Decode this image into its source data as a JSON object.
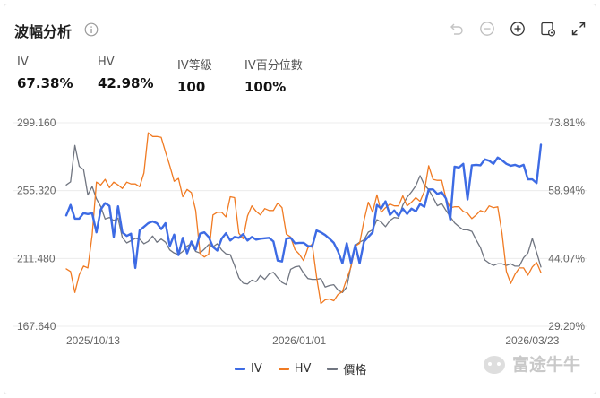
{
  "panel": {
    "title": "波幅分析"
  },
  "stats": [
    {
      "label": "IV",
      "value": "67.38%"
    },
    {
      "label": "HV",
      "value": "42.98%"
    },
    {
      "label": "IV等級",
      "value": "100"
    },
    {
      "label": "IV百分位數",
      "value": "100%"
    }
  ],
  "toolbar": [
    "undo-icon",
    "zoom-out-icon",
    "zoom-in-icon",
    "settings-icon",
    "fullscreen-icon"
  ],
  "watermark": {
    "text": "富途牛牛"
  },
  "colors": {
    "iv": "#3d6be4",
    "hv": "#f07a22",
    "price": "#707580",
    "grid": "#ececec",
    "axis_text": "#666666"
  },
  "chart_data": {
    "type": "line",
    "left_axis": {
      "ticks": [
        "299.160",
        "255.320",
        "211.480",
        "167.640"
      ],
      "range": [
        167.64,
        299.16
      ]
    },
    "right_axis": {
      "ticks": [
        "73.81%",
        "58.94%",
        "44.07%",
        "29.20%"
      ],
      "range": [
        29.2,
        73.81
      ]
    },
    "x_ticks": [
      {
        "label": "2025/10/13",
        "index": 0
      },
      {
        "label": "2026/01/01",
        "index": 54
      },
      {
        "label": "2026/03/23",
        "index": 108
      }
    ],
    "grid": true,
    "legend_position": "bottom-center",
    "series": [
      {
        "name": "IV",
        "key": "iv",
        "axis": "right",
        "values": [
          53.5,
          55.8,
          52.8,
          52.8,
          54.0,
          53.8,
          54.0,
          49.8,
          54.8,
          56.2,
          55.6,
          48.8,
          55.5,
          49.8,
          49.0,
          49.5,
          42.0,
          50.2,
          51.0,
          51.8,
          52.2,
          51.8,
          50.5,
          51.8,
          46.8,
          49.3,
          44.8,
          48.6,
          45.2,
          47.8,
          46.0,
          49.5,
          49.8,
          48.8,
          46.6,
          45.8,
          48.4,
          49.6,
          48.0,
          48.8,
          48.6,
          49.4,
          48.0,
          48.8,
          48.2,
          48.4,
          48.5,
          48.6,
          47.8,
          43.6,
          43.4,
          48.4,
          48.6,
          47.4,
          47.5,
          47.5,
          46.8,
          46.7,
          50.2,
          49.8,
          49.2,
          48.4,
          47.5,
          45.6,
          43.0,
          47.4,
          43.0,
          47.0,
          43.0,
          47.8,
          48.8,
          49.8,
          55.8,
          55.0,
          56.6,
          53.6,
          54.6,
          53.4,
          55.0,
          53.8,
          55.0,
          54.4,
          56.0,
          55.4,
          59.2,
          59.2,
          58.2,
          58.6,
          57.2,
          52.6,
          64.2,
          64.0,
          64.8,
          57.0,
          64.5,
          64.6,
          64.5,
          65.8,
          65.5,
          64.8,
          66.2,
          65.6,
          64.8,
          64.4,
          64.6,
          64.2,
          64.6,
          61.4,
          61.4,
          60.6,
          69.0
        ]
      },
      {
        "name": "HV",
        "key": "hv",
        "axis": "right",
        "values": [
          41.8,
          41.2,
          36.6,
          40.5,
          42.4,
          42.0,
          49.2,
          60.8,
          60.2,
          61.4,
          59.6,
          60.8,
          60.2,
          59.4,
          60.8,
          60.4,
          60.4,
          59.8,
          62.8,
          71.6,
          70.8,
          70.8,
          70.6,
          67.4,
          64.4,
          61.0,
          61.6,
          57.6,
          59.2,
          58.5,
          54.6,
          45.2,
          44.4,
          45.0,
          53.6,
          54.2,
          54.2,
          53.2,
          57.6,
          57.4,
          49.6,
          48.4,
          53.4,
          55.6,
          54.4,
          53.6,
          55.0,
          54.6,
          54.6,
          56.2,
          55.2,
          49.4,
          48.8,
          46.0,
          45.0,
          43.6,
          46.4,
          47.2,
          40.0,
          34.2,
          35.0,
          35.2,
          34.8,
          36.2,
          36.8,
          39.6,
          42.2,
          46.8,
          47.4,
          52.4,
          56.4,
          54.2,
          58.0,
          54.2,
          55.2,
          56.0,
          55.6,
          55.6,
          57.8,
          55.6,
          56.4,
          57.4,
          56.6,
          58.8,
          64.4,
          61.4,
          61.2,
          61.2,
          57.2,
          55.2,
          55.4,
          55.4,
          54.4,
          54.0,
          52.8,
          53.6,
          54.6,
          54.2,
          55.6,
          55.2,
          55.4,
          49.6,
          41.2,
          38.6,
          40.6,
          42.0,
          42.0,
          40.4,
          42.2,
          43.2,
          41.0
        ]
      },
      {
        "name": "價格",
        "key": "price",
        "axis": "left",
        "values": [
          259.0,
          261.0,
          284.5,
          271.0,
          269.0,
          252.5,
          258.0,
          250.0,
          245.0,
          237.0,
          238.0,
          236.0,
          237.5,
          225.0,
          221.5,
          223.0,
          224.5,
          224.0,
          221.0,
          222.5,
          226.0,
          222.0,
          224.0,
          222.0,
          217.0,
          215.0,
          214.0,
          216.0,
          219.5,
          221.0,
          216.0,
          215.0,
          217.5,
          220.5,
          219.0,
          221.0,
          217.0,
          214.5,
          214.0,
          207.0,
          199.0,
          195.5,
          195.0,
          197.5,
          196.5,
          200.5,
          198.0,
          201.5,
          202.5,
          199.0,
          196.0,
          194.5,
          204.5,
          206.0,
          206.5,
          202.0,
          198.5,
          198.0,
          198.0,
          198.5,
          193.0,
          194.0,
          194.5,
          191.0,
          189.5,
          193.0,
          207.0,
          220.0,
          222.0,
          223.5,
          228.5,
          230.0,
          236.5,
          235.0,
          232.0,
          236.0,
          238.0,
          237.5,
          246.0,
          251.0,
          254.5,
          258.5,
          265.0,
          259.0,
          256.0,
          251.0,
          245.5,
          247.0,
          242.5,
          238.5,
          234.5,
          232.0,
          230.0,
          230.0,
          229.0,
          223.5,
          218.5,
          210.5,
          208.5,
          207.0,
          208.0,
          208.0,
          207.0,
          208.0,
          206.5,
          206.5,
          212.0,
          215.0,
          224.5,
          215.5,
          206.0
        ]
      }
    ],
    "legend": [
      "IV",
      "HV",
      "價格"
    ]
  }
}
